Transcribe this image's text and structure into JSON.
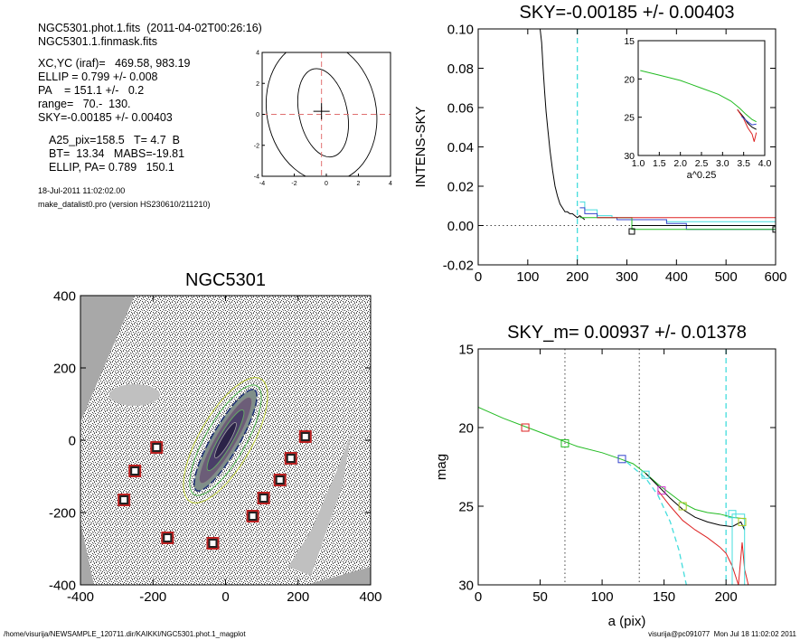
{
  "header": {
    "files": [
      "NGC5301.phot.1.fits  (2011-04-02T00:26:16)",
      "NGC5301.1.finmask.fits"
    ],
    "params": [
      "XC,YC (iraf)=   469.58, 983.19",
      "ELLIP = 0.799 +/- 0.008",
      "PA    = 151.1 +/-   0.2",
      "range=   70.-  130.",
      "SKY=-0.00185 +/- 0.00403"
    ],
    "derived": [
      "A25_pix=158.5   T= 4.7  B",
      "BT=  13.34   MABS=-19.81",
      "ELLIP, PA= 0.789   150.1"
    ],
    "date": "18-Jul-2011 11:02:02.00",
    "program": "make_datalist0.pro (version HS230610/211210)"
  },
  "footer": {
    "path": "/home/visurija/NEWSAMPLE_120711.dir/KAIKKI/NGC5301.phot.1_magplot",
    "user": "visurija@pc091077  Mon Jul 18 11:02:02 2011"
  },
  "colors": {
    "cyan": "#44dddd",
    "red": "#dd2222",
    "green": "#22bb22",
    "blue": "#3344cc",
    "maskgray": "#c0c0c0"
  },
  "chart_data": [
    {
      "type": "contour",
      "title": "",
      "xlim": [
        -4,
        4
      ],
      "ylim": [
        -4,
        4
      ],
      "xticks": [
        -4,
        -2,
        0,
        2,
        4
      ],
      "yticks": [
        -4,
        -2,
        0,
        2,
        4
      ],
      "center_marker": [
        -0.3,
        0.2
      ],
      "dashed_guides": {
        "x": -0.3,
        "y": 0
      },
      "contours": [
        {
          "cx": -0.2,
          "cy": 0.1,
          "rx": 1.5,
          "ry": 2.9
        },
        {
          "cx": -0.3,
          "cy": 0.2,
          "rx": 3.4,
          "ry": 4.6
        }
      ]
    },
    {
      "type": "line",
      "title": "SKY=-0.00185 +/- 0.00403",
      "xlabel": "",
      "ylabel": "INTENS-SKY",
      "xlim": [
        0,
        600
      ],
      "ylim": [
        -0.02,
        0.1
      ],
      "xticks": [
        0,
        100,
        200,
        300,
        400,
        500,
        600
      ],
      "yticks": [
        -0.02,
        0.0,
        0.02,
        0.04,
        0.06,
        0.08,
        0.1
      ],
      "ytick_labels": [
        "-0.02",
        "0.00",
        "0.02",
        "0.04",
        "0.06",
        "0.08",
        "0.10"
      ],
      "vline_dashed": 200,
      "series": [
        {
          "color": "black",
          "x": [
            125,
            128,
            131,
            134,
            137,
            140,
            145,
            150,
            155,
            160,
            165,
            170,
            175,
            180,
            185,
            190,
            195,
            200,
            205,
            210,
            215
          ],
          "y": [
            0.1,
            0.093,
            0.08,
            0.068,
            0.058,
            0.05,
            0.038,
            0.028,
            0.02,
            0.015,
            0.011,
            0.009,
            0.007,
            0.007,
            0.006,
            0.006,
            0.005,
            0.004,
            0.005,
            0.004,
            0.003
          ]
        },
        {
          "color": "cyan",
          "x": [
            205,
            215,
            215,
            240,
            240,
            270,
            270,
            310,
            310,
            380,
            380,
            600
          ],
          "y": [
            0.012,
            0.012,
            0.008,
            0.008,
            0.005,
            0.005,
            0.004,
            0.004,
            0.003,
            0.003,
            0.002,
            0.002
          ]
        },
        {
          "color": "blue",
          "x": [
            205,
            215,
            215,
            240,
            240,
            280,
            280,
            380,
            380,
            420,
            420,
            600
          ],
          "y": [
            0.009,
            0.009,
            0.006,
            0.006,
            0.004,
            0.004,
            0.003,
            0.003,
            0.001,
            0.001,
            -0.002,
            -0.002
          ]
        },
        {
          "color": "green",
          "x": [
            205,
            310,
            310,
            600
          ],
          "y": [
            0.004,
            0.004,
            -0.002,
            -0.002
          ]
        },
        {
          "color": "red",
          "x": [
            240,
            600
          ],
          "y": [
            0.004,
            0.004
          ]
        },
        {
          "color": "black",
          "x": [
            310,
            600
          ],
          "y": [
            0.0,
            0.0
          ]
        }
      ],
      "inset": {
        "xlabel": "a^0.25",
        "xlim": [
          1.0,
          4.0
        ],
        "ylim": [
          15,
          30
        ],
        "xticks": [
          1.0,
          1.5,
          2.0,
          2.5,
          3.0,
          3.5,
          4.0
        ],
        "xtick_labels": [
          "1.0",
          "1.5",
          "2.0",
          "2.5",
          "3.0",
          "3.5",
          "4.0"
        ],
        "yticks": [
          15,
          20,
          25,
          30
        ],
        "series": [
          {
            "color": "green",
            "x": [
              1.05,
              1.5,
              2.0,
              2.5,
              2.9,
              3.2,
              3.4,
              3.55,
              3.7,
              3.8
            ],
            "y": [
              18.9,
              19.5,
              20.2,
              21.2,
              22.0,
              22.9,
              23.8,
              24.6,
              25.3,
              25.6
            ]
          },
          {
            "color": "black",
            "x": [
              3.35,
              3.5,
              3.6,
              3.7,
              3.8
            ],
            "y": [
              24.0,
              25.0,
              25.8,
              26.3,
              26.6
            ]
          },
          {
            "color": "red",
            "x": [
              3.35,
              3.5,
              3.6,
              3.7,
              3.75,
              3.8
            ],
            "y": [
              24.0,
              25.2,
              26.4,
              27.2,
              28.2,
              27.0
            ]
          },
          {
            "color": "blue",
            "x": [
              3.45,
              3.6,
              3.7,
              3.8
            ],
            "y": [
              24.9,
              25.6,
              26.0,
              25.9
            ]
          }
        ]
      }
    },
    {
      "type": "image",
      "title": "NGC5301",
      "xlim": [
        -400,
        400
      ],
      "ylim": [
        -400,
        400
      ],
      "xticks": [
        -400,
        -200,
        0,
        200,
        400
      ],
      "yticks": [
        -400,
        -200,
        0,
        200,
        400
      ],
      "galaxy": {
        "cx": 0,
        "cy": 0,
        "a": 160,
        "b": 38,
        "pa_deg": 60
      },
      "boxes": [
        [
          -190,
          -20
        ],
        [
          -250,
          -85
        ],
        [
          -280,
          -165
        ],
        [
          -160,
          -270
        ],
        [
          -35,
          -285
        ],
        [
          220,
          10
        ],
        [
          180,
          -50
        ],
        [
          150,
          -110
        ],
        [
          105,
          -160
        ],
        [
          75,
          -210
        ]
      ]
    },
    {
      "type": "line",
      "title": "SKY_m=  0.00937 +/- 0.01378",
      "xlabel": "a (pix)",
      "ylabel": "mag",
      "xlim": [
        0,
        240
      ],
      "ylim": [
        15,
        30
      ],
      "xticks": [
        0,
        50,
        100,
        150,
        200
      ],
      "yticks": [
        15,
        20,
        25,
        30
      ],
      "vlines_dotted": [
        70,
        130
      ],
      "vline_dashed": 200,
      "markers": [
        {
          "x": 38,
          "y": 20.0,
          "color": "red"
        },
        {
          "x": 70,
          "y": 21.0,
          "color": "green"
        },
        {
          "x": 116,
          "y": 22.0,
          "color": "blue"
        },
        {
          "x": 135,
          "y": 23.0,
          "color": "cyan"
        },
        {
          "x": 148,
          "y": 24.0,
          "color": "magenta"
        },
        {
          "x": 165,
          "y": 25.0,
          "color": "yellowgreen"
        },
        {
          "x": 205,
          "y": 25.5,
          "color": "cyan"
        },
        {
          "x": 213,
          "y": 26.0,
          "color": "yellowgreen"
        }
      ],
      "series": [
        {
          "color": "green",
          "x": [
            0,
            20,
            40,
            60,
            80,
            100,
            115,
            125,
            135,
            145,
            155,
            165,
            175,
            185,
            195,
            205,
            215
          ],
          "y": [
            18.7,
            19.4,
            20.0,
            20.6,
            21.2,
            21.6,
            22.0,
            22.3,
            22.9,
            23.6,
            24.2,
            24.8,
            25.2,
            25.4,
            25.5,
            25.7,
            25.8
          ]
        },
        {
          "color": "black",
          "x": [
            135,
            145,
            155,
            165,
            175,
            185,
            195,
            205,
            212,
            215
          ],
          "y": [
            22.9,
            23.7,
            24.5,
            25.2,
            25.7,
            26.0,
            26.2,
            26.3,
            26.0,
            26.5
          ]
        },
        {
          "color": "red",
          "x": [
            145,
            155,
            165,
            175,
            185,
            195,
            200,
            205,
            210,
            213,
            215,
            218
          ],
          "y": [
            24.0,
            25.0,
            25.9,
            26.5,
            27.0,
            27.6,
            28.0,
            28.8,
            30.0,
            27.3,
            29.0,
            30.0
          ]
        },
        {
          "color": "cyan-dashed",
          "x": [
            120,
            135,
            145,
            155,
            162,
            168
          ],
          "y": [
            22.2,
            23.2,
            24.3,
            26.0,
            27.8,
            30.0
          ]
        },
        {
          "color": "cyan",
          "x": [
            205,
            205,
            215,
            215
          ],
          "y": [
            30,
            25.5,
            25.5,
            30
          ]
        }
      ]
    }
  ]
}
